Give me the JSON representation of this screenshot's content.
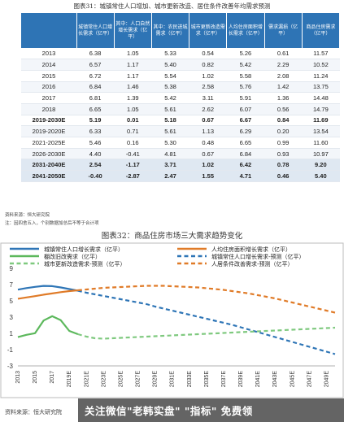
{
  "table1": {
    "title": "图表31：城镇常住人口增加、城市更新改造、居住条件改善年均需求预测",
    "headers": [
      "",
      "城镇常住人口增长需求（亿平）",
      "其中：人口自然增长需求（亿平）",
      "其中：农民进城需求（亿平）",
      "城市更新改造需求（亿平）",
      "人均住房面积增长需求（亿平）",
      "需求漏损（亿平）",
      "商品住房需求（亿平）"
    ],
    "rows": [
      {
        "label": "2013",
        "values": [
          "6.38",
          "1.05",
          "5.33",
          "0.54",
          "5.26",
          "0.61",
          "11.57"
        ],
        "style": ""
      },
      {
        "label": "2014",
        "values": [
          "6.57",
          "1.17",
          "5.40",
          "0.82",
          "5.42",
          "2.29",
          "10.52"
        ],
        "style": ""
      },
      {
        "label": "2015",
        "values": [
          "6.72",
          "1.17",
          "5.54",
          "1.02",
          "5.58",
          "2.08",
          "11.24"
        ],
        "style": ""
      },
      {
        "label": "2016",
        "values": [
          "6.84",
          "1.46",
          "5.38",
          "2.58",
          "5.76",
          "1.42",
          "13.75"
        ],
        "style": ""
      },
      {
        "label": "2017",
        "values": [
          "6.81",
          "1.39",
          "5.42",
          "3.11",
          "5.91",
          "1.36",
          "14.48"
        ],
        "style": ""
      },
      {
        "label": "2018",
        "values": [
          "6.65",
          "1.05",
          "5.61",
          "2.62",
          "6.07",
          "0.56",
          "14.79"
        ],
        "style": ""
      },
      {
        "label": "2019-2030E",
        "values": [
          "5.19",
          "0.01",
          "5.18",
          "0.67",
          "6.67",
          "0.84",
          "11.69"
        ],
        "style": "bold"
      },
      {
        "label": "2019-2020E",
        "values": [
          "6.33",
          "0.71",
          "5.61",
          "1.13",
          "6.29",
          "0.20",
          "13.54"
        ],
        "style": ""
      },
      {
        "label": "2021-2025E",
        "values": [
          "5.46",
          "0.16",
          "5.30",
          "0.48",
          "6.65",
          "0.99",
          "11.60"
        ],
        "style": ""
      },
      {
        "label": "2026-2030E",
        "values": [
          "4.40",
          "-0.41",
          "4.81",
          "0.67",
          "6.84",
          "0.93",
          "10.97"
        ],
        "style": ""
      },
      {
        "label": "2031-2040E",
        "values": [
          "2.54",
          "-1.17",
          "3.71",
          "1.02",
          "6.42",
          "0.78",
          "9.20"
        ],
        "style": "bold highlight"
      },
      {
        "label": "2041-2050E",
        "values": [
          "-0.40",
          "-2.87",
          "2.47",
          "1.55",
          "4.71",
          "0.46",
          "5.40"
        ],
        "style": "bold highlight"
      }
    ]
  },
  "note1": "资料来源：恒大研究院",
  "note2": "注：因四舍五入，个别数据加总后不等于合计项",
  "table2": {
    "title": "图表32：商品住房市场三大需求趋势变化"
  },
  "chart_data": {
    "type": "line",
    "x": [
      "2013",
      "2014",
      "2015",
      "2016",
      "2017",
      "2018",
      "2019E",
      "2020E",
      "2021E",
      "2022E",
      "2023E",
      "2024E",
      "2025E",
      "2026E",
      "2027E",
      "2028E",
      "2029E",
      "2030E",
      "2031E",
      "2032E",
      "2033E",
      "2034E",
      "2035E",
      "2036E",
      "2037E",
      "2038E",
      "2039E",
      "2040E",
      "2041E",
      "2042E",
      "2043E",
      "2044E",
      "2045E",
      "2046E",
      "2047E",
      "2048E",
      "2049E",
      "2050E"
    ],
    "x_tick_labels": [
      "2013",
      "2015",
      "2017",
      "2019E",
      "2021E",
      "2023E",
      "2025E",
      "2027E",
      "2029E",
      "2031E",
      "2033E",
      "2035E",
      "2037E",
      "2039E",
      "2041E",
      "2043E",
      "2045E",
      "2047E",
      "2049E"
    ],
    "ylim": [
      -3,
      9
    ],
    "yticks": [
      -3,
      -1,
      1,
      3,
      5,
      7,
      9
    ],
    "legend_placement": "top",
    "series": [
      {
        "name": "城镇常住人口增长需求（亿平）",
        "color": "#2e75b6",
        "dash": false,
        "values": [
          6.38,
          6.57,
          6.72,
          6.84,
          6.81,
          6.65,
          6.45,
          6.25,
          null,
          null,
          null,
          null,
          null,
          null,
          null,
          null,
          null,
          null,
          null,
          null,
          null,
          null,
          null,
          null,
          null,
          null,
          null,
          null,
          null,
          null,
          null,
          null,
          null,
          null,
          null,
          null,
          null,
          null
        ]
      },
      {
        "name": "人均住房面积增长需求（亿平）",
        "color": "#e07b28",
        "dash": false,
        "values": [
          5.26,
          5.42,
          5.58,
          5.76,
          5.91,
          6.07,
          6.2,
          6.3,
          null,
          null,
          null,
          null,
          null,
          null,
          null,
          null,
          null,
          null,
          null,
          null,
          null,
          null,
          null,
          null,
          null,
          null,
          null,
          null,
          null,
          null,
          null,
          null,
          null,
          null,
          null,
          null,
          null,
          null
        ]
      },
      {
        "name": "棚改旧改需求（亿平）",
        "color": "#5cb85c",
        "dash": false,
        "values": [
          0.54,
          0.82,
          1.02,
          2.58,
          3.11,
          2.62,
          1.3,
          0.9,
          null,
          null,
          null,
          null,
          null,
          null,
          null,
          null,
          null,
          null,
          null,
          null,
          null,
          null,
          null,
          null,
          null,
          null,
          null,
          null,
          null,
          null,
          null,
          null,
          null,
          null,
          null,
          null,
          null,
          null
        ]
      },
      {
        "name": "城镇常住人口增长需求-预测（亿平）",
        "color": "#2e75b6",
        "dash": true,
        "values": [
          null,
          null,
          null,
          null,
          null,
          null,
          null,
          6.25,
          6.0,
          5.8,
          5.6,
          5.4,
          5.2,
          5.0,
          4.8,
          4.6,
          4.3,
          4.05,
          3.8,
          3.55,
          3.3,
          3.05,
          2.8,
          2.55,
          2.3,
          2.05,
          1.75,
          1.45,
          1.15,
          0.85,
          0.55,
          0.25,
          -0.05,
          -0.35,
          -0.65,
          -0.95,
          -1.25,
          -1.55
        ]
      },
      {
        "name": "人居条件改善需求-预测（亿平）",
        "color": "#e07b28",
        "dash": true,
        "values": [
          null,
          null,
          null,
          null,
          null,
          null,
          null,
          6.3,
          6.4,
          6.5,
          6.6,
          6.65,
          6.7,
          6.75,
          6.8,
          6.85,
          6.85,
          6.85,
          6.8,
          6.75,
          6.7,
          6.65,
          6.55,
          6.45,
          6.35,
          6.2,
          6.05,
          5.9,
          5.7,
          5.5,
          5.3,
          5.05,
          4.8,
          4.55,
          4.3,
          4.05,
          3.8,
          3.55
        ]
      },
      {
        "name": "城市更新改造需求-预测（亿平）",
        "color": "#7fc97f",
        "dash": true,
        "values": [
          null,
          null,
          null,
          null,
          null,
          null,
          null,
          0.9,
          0.6,
          0.4,
          0.35,
          0.4,
          0.45,
          0.5,
          0.55,
          0.6,
          0.65,
          0.7,
          0.75,
          0.8,
          0.85,
          0.9,
          0.95,
          1.0,
          1.05,
          1.1,
          1.15,
          1.2,
          1.25,
          1.3,
          1.35,
          1.4,
          1.45,
          1.5,
          1.55,
          1.6,
          1.65,
          1.7
        ]
      }
    ]
  },
  "footer": {
    "source_note": "资料来源：恒大研究院",
    "watermark": "关注微信\"老韩实盘\" \"指标\" 免费领"
  }
}
